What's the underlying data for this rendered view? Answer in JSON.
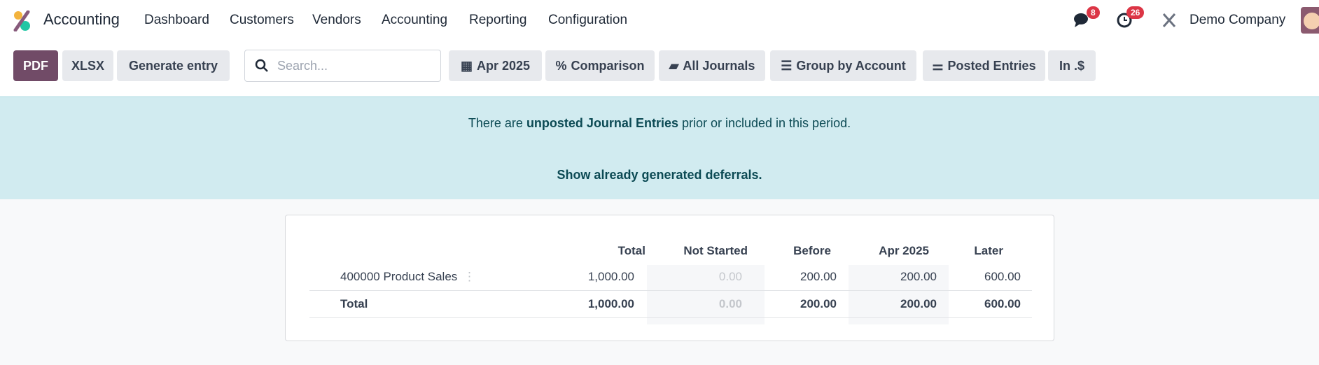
{
  "navbar": {
    "app_name": "Accounting",
    "menu": [
      "Dashboard",
      "Customers",
      "Vendors",
      "Accounting",
      "Reporting",
      "Configuration"
    ],
    "messages_count": "8",
    "activities_count": "26",
    "company": "Demo Company"
  },
  "toolbar": {
    "pdf": "PDF",
    "xlsx": "XLSX",
    "generate": "Generate entry",
    "search_placeholder": "Search...",
    "filters": [
      "Apr 2025",
      "Comparison",
      "All Journals",
      "Group by Account",
      "Posted Entries",
      "In .$"
    ]
  },
  "banner": {
    "pre": "There are ",
    "bold": "unposted Journal Entries",
    "post": " prior or included in this period.",
    "link": "Show already generated deferrals."
  },
  "colors": {
    "primary": "#714b67",
    "banner_bg": "#d1ebf0",
    "badge": "#dc3545"
  },
  "table": {
    "columns": [
      "Total",
      "Not Started",
      "Before",
      "Apr 2025",
      "Later"
    ],
    "rows": [
      {
        "label": "400000 Product Sales",
        "values": [
          "1,000.00",
          "0.00",
          "200.00",
          "200.00",
          "600.00"
        ]
      }
    ],
    "total": {
      "label": "Total",
      "values": [
        "1,000.00",
        "0.00",
        "200.00",
        "200.00",
        "600.00"
      ]
    }
  }
}
